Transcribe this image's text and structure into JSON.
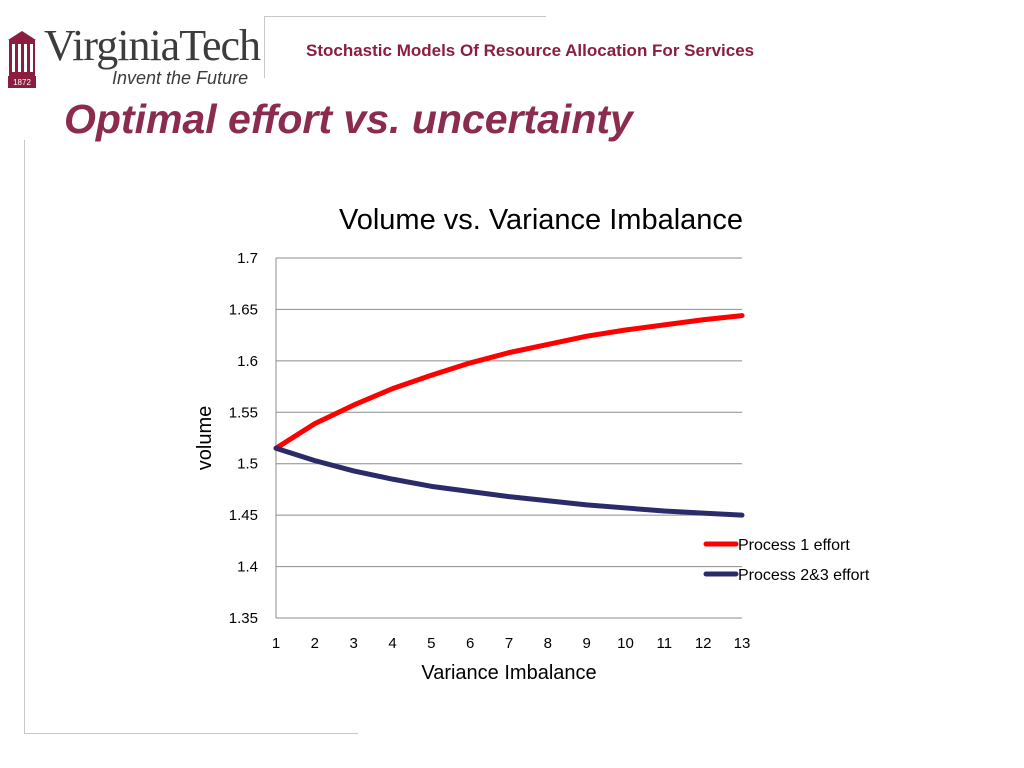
{
  "logo": {
    "wordmark": "VirginiaTech",
    "tagline": "Invent the Future",
    "seal_year": "1872"
  },
  "header": {
    "title": "Stochastic Models Of Resource Allocation For Services"
  },
  "slide": {
    "title": "Optimal effort vs. uncertainty"
  },
  "chart_data": {
    "type": "line",
    "title": "Volume vs. Variance Imbalance",
    "xlabel": "Variance Imbalance",
    "ylabel": "volume",
    "x": [
      1,
      2,
      3,
      4,
      5,
      6,
      7,
      8,
      9,
      10,
      11,
      12,
      13
    ],
    "ylim": [
      1.35,
      1.7
    ],
    "yticks": [
      1.35,
      1.4,
      1.45,
      1.5,
      1.55,
      1.6,
      1.65,
      1.7
    ],
    "grid": true,
    "legend_position": "right",
    "series": [
      {
        "name": "Process 1 effort",
        "color": "#ff0000",
        "values": [
          1.515,
          1.539,
          1.557,
          1.573,
          1.586,
          1.598,
          1.608,
          1.616,
          1.624,
          1.63,
          1.635,
          1.64,
          1.644
        ]
      },
      {
        "name": "Process 2&3 effort",
        "color": "#2b2b6b",
        "values": [
          1.515,
          1.503,
          1.493,
          1.485,
          1.478,
          1.473,
          1.468,
          1.464,
          1.46,
          1.457,
          1.454,
          1.452,
          1.45
        ]
      }
    ]
  }
}
